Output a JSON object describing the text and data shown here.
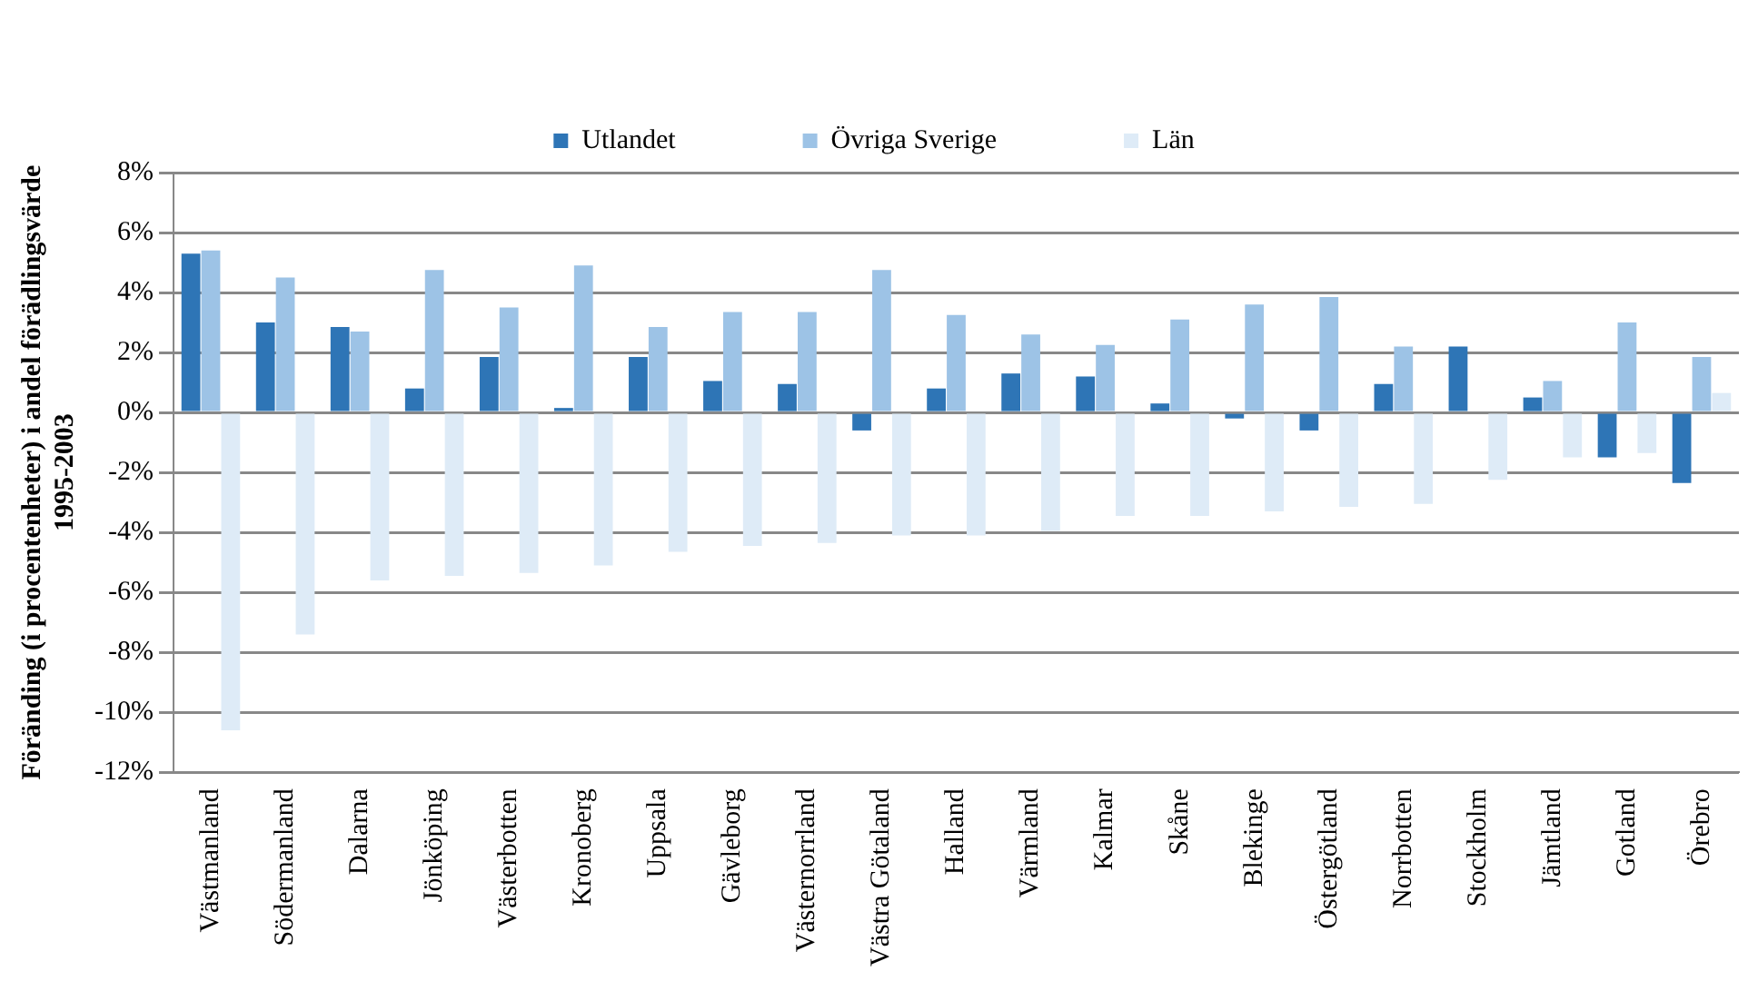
{
  "chart_data": {
    "type": "bar",
    "ylabel": "Föränding (i procentenheter) i andel förädlingsvärde\n1995-2003",
    "categories": [
      "Västmanland",
      "Södermanland",
      "Dalarna",
      "Jönköping",
      "Västerbotten",
      "Kronoberg",
      "Uppsala",
      "Gävleborg",
      "Västernorrland",
      "Västra Götaland",
      "Halland",
      "Värmland",
      "Kalmar",
      "Skåne",
      "Blekinge",
      "Östergötland",
      "Norrbotten",
      "Stockholm",
      "Jämtland",
      "Gotland",
      "Örebro"
    ],
    "series": [
      {
        "name": "Utlandet",
        "color": "#2e75b6",
        "values": [
          5.3,
          3.0,
          2.85,
          0.8,
          1.85,
          0.15,
          1.85,
          1.05,
          0.95,
          -0.6,
          0.8,
          1.3,
          1.2,
          0.3,
          -0.2,
          -0.6,
          0.95,
          2.2,
          0.5,
          -1.5,
          -2.35
        ]
      },
      {
        "name": "Övriga Sverige",
        "color": "#9dc3e6",
        "values": [
          5.4,
          4.5,
          2.7,
          4.75,
          3.5,
          4.9,
          2.85,
          3.35,
          3.35,
          4.75,
          3.25,
          2.6,
          2.25,
          3.1,
          3.6,
          3.85,
          2.2,
          null,
          1.05,
          3.0,
          1.85
        ]
      },
      {
        "name": "Län",
        "color": "#deebf7",
        "values": [
          -10.6,
          -7.4,
          -5.6,
          -5.45,
          -5.35,
          -5.1,
          -4.65,
          -4.45,
          -4.35,
          -4.1,
          -4.1,
          -3.95,
          -3.45,
          -3.45,
          -3.3,
          -3.15,
          -3.05,
          -2.25,
          -1.5,
          -1.35,
          0.65
        ]
      }
    ],
    "ylim": [
      -12,
      8
    ],
    "yticks": [
      {
        "value": -12,
        "label": "-12%"
      },
      {
        "value": -10,
        "label": "-10%"
      },
      {
        "value": -8,
        "label": "-8%"
      },
      {
        "value": -6,
        "label": "-6%"
      },
      {
        "value": -4,
        "label": "-4%"
      },
      {
        "value": -2,
        "label": "-2%"
      },
      {
        "value": 0,
        "label": "0%"
      },
      {
        "value": 2,
        "label": "2%"
      },
      {
        "value": 4,
        "label": "4%"
      },
      {
        "value": 6,
        "label": "6%"
      },
      {
        "value": 8,
        "label": "8%"
      }
    ],
    "grid": "y",
    "legend": "top"
  }
}
